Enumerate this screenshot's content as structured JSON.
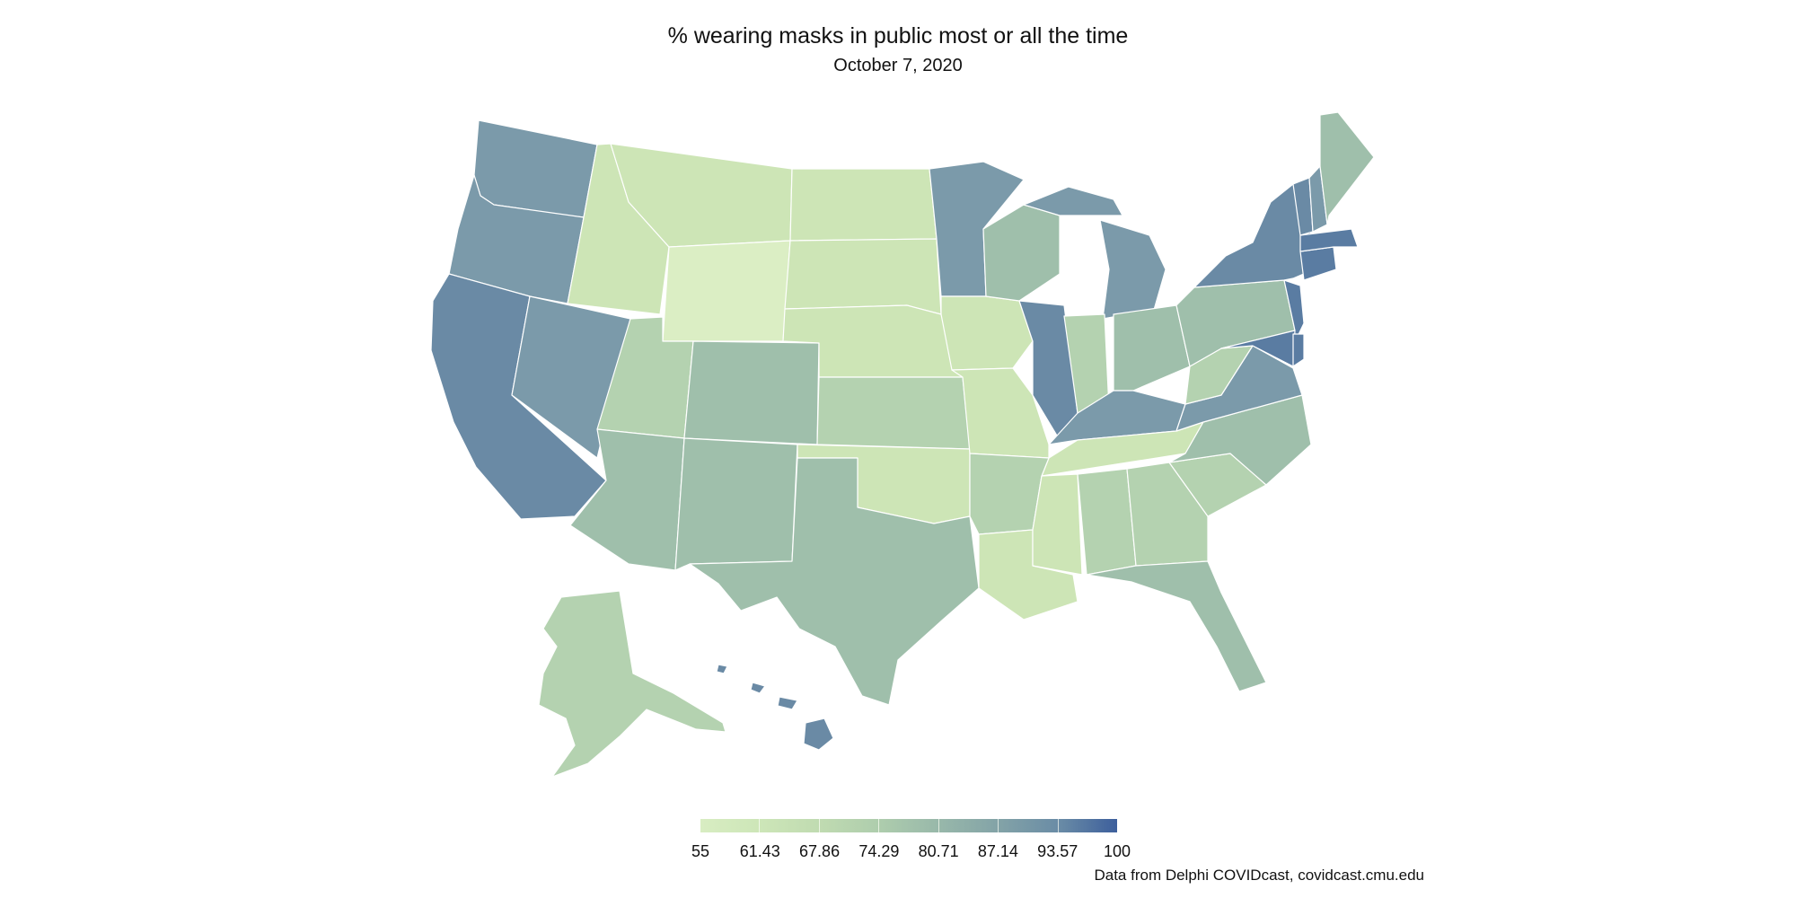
{
  "title": "% wearing masks in public most or all the time",
  "subtitle": "October  7, 2020",
  "source": "Data from Delphi COVIDcast, covidcast.cmu.edu",
  "legend": {
    "labels": [
      "55",
      "61.43",
      "67.86",
      "74.29",
      "80.71",
      "87.14",
      "93.57",
      "100"
    ],
    "colors": [
      "#d8edc2",
      "#cde6b8",
      "#c0dbb1",
      "#aecdad",
      "#98b8aa",
      "#83a3a7",
      "#6a8ca6",
      "#3d5f9c"
    ]
  },
  "map_colors": {
    "lowest": "#dbeec4",
    "low": "#cde5b6",
    "mid_low": "#b4d2b0",
    "mid": "#9fbfab",
    "mid_high": "#8fadaa",
    "high": "#7b9aaa",
    "higher": "#6a8aa5",
    "highest": "#5a7ca2",
    "border": "#ffffff"
  }
}
